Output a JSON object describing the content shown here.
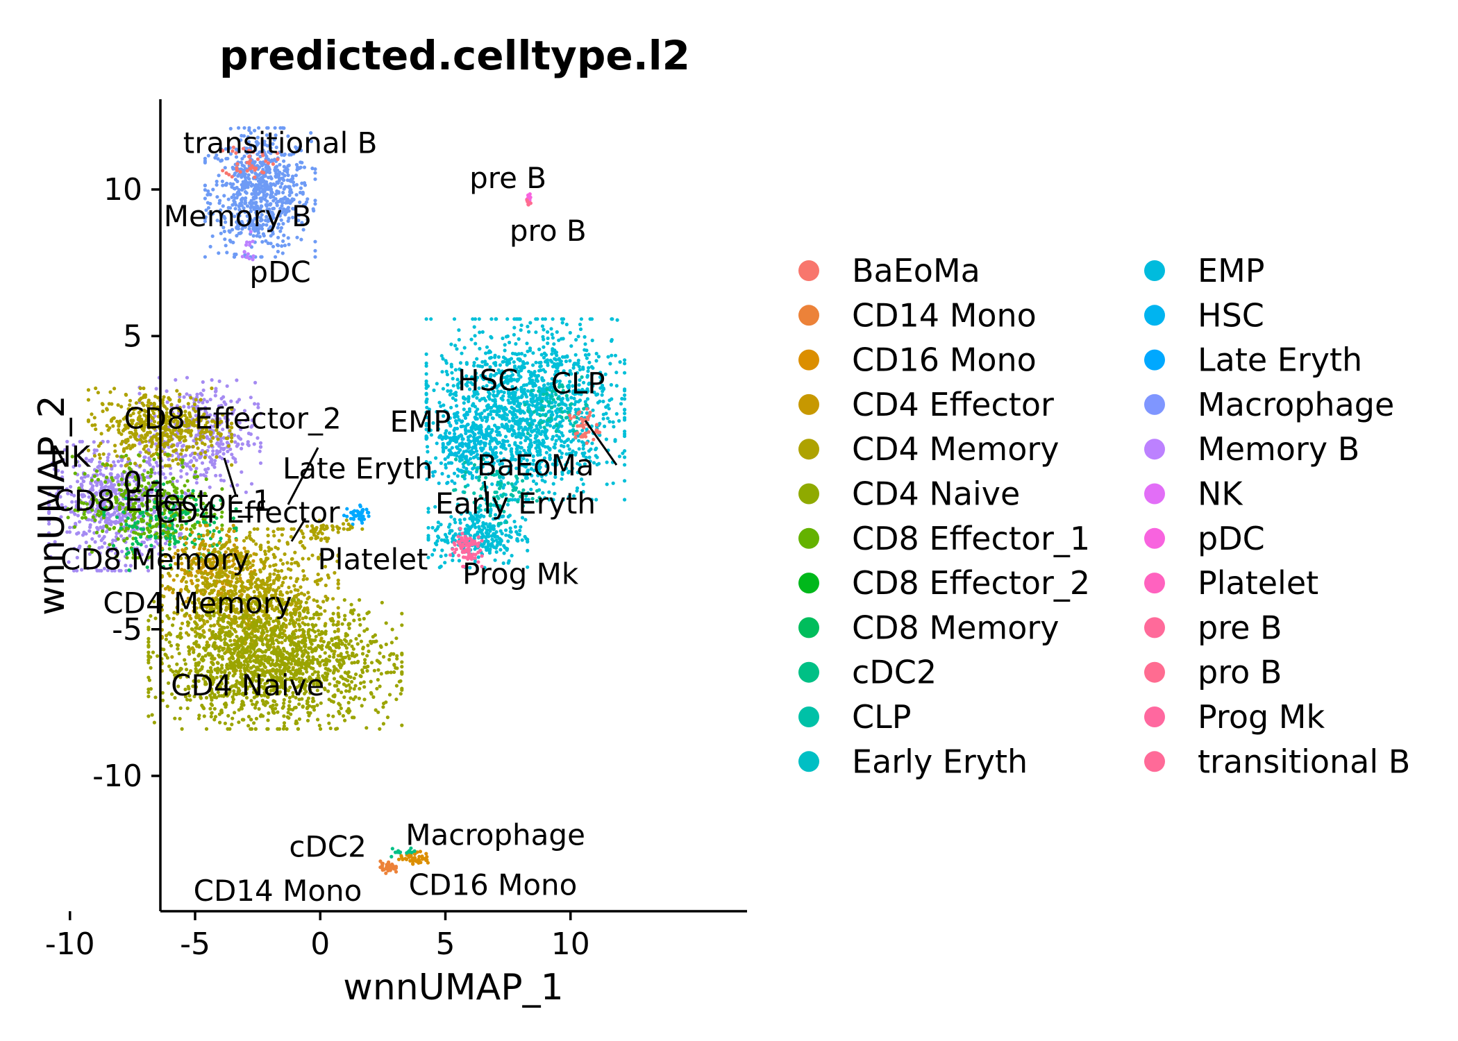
{
  "chart_data": {
    "type": "scatter",
    "title": "predicted.celltype.l2",
    "xlabel": "wnnUMAP_1",
    "ylabel": "wnnUMAP_2",
    "xlim": [
      -11.5,
      12
    ],
    "ylim": [
      -14.2,
      13
    ],
    "xticks": [
      {
        "value": -10,
        "label": "-10"
      },
      {
        "value": -5,
        "label": "-5"
      },
      {
        "value": 0,
        "label": "0"
      },
      {
        "value": 5,
        "label": "5"
      },
      {
        "value": 10,
        "label": "10"
      }
    ],
    "yticks": [
      {
        "value": 10,
        "label": "10"
      },
      {
        "value": 5,
        "label": "5"
      },
      {
        "value": 0,
        "label": "0"
      },
      {
        "value": -5,
        "label": "-5"
      },
      {
        "value": -10,
        "label": "-10"
      }
    ],
    "grid": false,
    "legend": "right",
    "legend_entries": [
      {
        "name": "BaEoMa",
        "color": "#F8766D"
      },
      {
        "name": "CD14 Mono",
        "color": "#EC8239"
      },
      {
        "name": "CD16 Mono",
        "color": "#DB8E00"
      },
      {
        "name": "CD4 Effector",
        "color": "#C79800"
      },
      {
        "name": "CD4 Memory",
        "color": "#AEA200"
      },
      {
        "name": "CD4 Naive",
        "color": "#8FAA00"
      },
      {
        "name": "CD8 Effector_1",
        "color": "#64B200"
      },
      {
        "name": "CD8 Effector_2",
        "color": "#00B81B"
      },
      {
        "name": "CD8 Memory",
        "color": "#00BD5C"
      },
      {
        "name": "cDC2",
        "color": "#00C085"
      },
      {
        "name": "CLP",
        "color": "#00C1A7"
      },
      {
        "name": "Early Eryth",
        "color": "#00BFC4"
      },
      {
        "name": "EMP",
        "color": "#00BBDD"
      },
      {
        "name": "HSC",
        "color": "#00B4F0"
      },
      {
        "name": "Late Eryth",
        "color": "#00A8FF"
      },
      {
        "name": "Macrophage",
        "color": "#7F96FF"
      },
      {
        "name": "Memory B",
        "color": "#BC81FF"
      },
      {
        "name": "NK",
        "color": "#E26EF7"
      },
      {
        "name": "pDC",
        "color": "#F863DF"
      },
      {
        "name": "Platelet",
        "color": "#FF62BF"
      },
      {
        "name": "pre B",
        "color": "#FF6A9A"
      },
      {
        "name": "pro B",
        "color": "#FF6C91"
      },
      {
        "name": "Prog Mk",
        "color": "#FF689F"
      },
      {
        "name": "transitional B",
        "color": "#FF6A98"
      }
    ],
    "clusters": [
      {
        "name": "Memory B",
        "color": "#6E9BF5",
        "cx": -2.4,
        "cy": 9.9,
        "sx": 1.0,
        "sy": 1.0,
        "n": 700
      },
      {
        "name": "transitional B",
        "color": "#F8766D",
        "cx": -2.8,
        "cy": 11.0,
        "sx": 0.5,
        "sy": 0.3,
        "n": 40
      },
      {
        "name": "pDC",
        "color": "#BC81FF",
        "cx": -2.9,
        "cy": 7.9,
        "sx": 0.2,
        "sy": 0.3,
        "n": 15
      },
      {
        "name": "pre B",
        "color": "#F863DF",
        "cx": 8.3,
        "cy": 9.7,
        "sx": 0.05,
        "sy": 0.08,
        "n": 10
      },
      {
        "name": "pro B",
        "color": "#FF6C91",
        "cx": 8.3,
        "cy": 9.5,
        "sx": 0.05,
        "sy": 0.08,
        "n": 8
      },
      {
        "name": "NK",
        "color": "#A58BF2",
        "cx": -8.2,
        "cy": -0.8,
        "sx": 1.2,
        "sy": 1.0,
        "n": 600
      },
      {
        "name": "NK",
        "color": "#A58BF2",
        "cx": -4.8,
        "cy": 1.6,
        "sx": 1.1,
        "sy": 0.9,
        "n": 350
      },
      {
        "name": "CD8 Effector_2",
        "color": "#AEA200",
        "cx": -6.4,
        "cy": 1.9,
        "sx": 1.3,
        "sy": 0.6,
        "n": 450
      },
      {
        "name": "CD8 Effector_1",
        "color": "#64B200",
        "cx": -7.0,
        "cy": -0.8,
        "sx": 1.4,
        "sy": 0.8,
        "n": 350
      },
      {
        "name": "CD8 Memory",
        "color": "#00BD5C",
        "cx": -6.0,
        "cy": -1.5,
        "sx": 1.2,
        "sy": 0.7,
        "n": 150
      },
      {
        "name": "CD4 Effector",
        "color": "#C79800",
        "cx": -4.2,
        "cy": -3.0,
        "sx": 0.9,
        "sy": 0.7,
        "n": 250
      },
      {
        "name": "CD4 Memory",
        "color": "#AEA200",
        "cx": -2.8,
        "cy": -4.0,
        "sx": 1.6,
        "sy": 1.1,
        "n": 900
      },
      {
        "name": "CD4 Naive",
        "color": "#9BA400",
        "cx": -1.8,
        "cy": -6.2,
        "sx": 2.3,
        "sy": 1.0,
        "n": 1500
      },
      {
        "name": "HSC",
        "color": "#00BFD8",
        "cx": 8.2,
        "cy": 2.5,
        "sx": 1.8,
        "sy": 1.4,
        "n": 1400
      },
      {
        "name": "HSC",
        "color": "#00BFD8",
        "cx": 6.3,
        "cy": -1.8,
        "sx": 0.9,
        "sy": 0.5,
        "n": 300
      },
      {
        "name": "EMP",
        "color": "#00BBDD",
        "cx": 5.8,
        "cy": 1.3,
        "sx": 0.7,
        "sy": 0.6,
        "n": 200
      },
      {
        "name": "CLP",
        "color": "#00C1A7",
        "cx": 9.5,
        "cy": 2.5,
        "sx": 0.6,
        "sy": 0.5,
        "n": 60
      },
      {
        "name": "BaEoMa",
        "color": "#F8766D",
        "cx": 10.5,
        "cy": 1.9,
        "sx": 0.3,
        "sy": 0.3,
        "n": 40
      },
      {
        "name": "Early Eryth",
        "color": "#00C1A7",
        "cx": 7.0,
        "cy": -0.3,
        "sx": 0.8,
        "sy": 0.5,
        "n": 80
      },
      {
        "name": "Prog Mk",
        "color": "#FF689F",
        "cx": 5.8,
        "cy": -2.2,
        "sx": 0.3,
        "sy": 0.3,
        "n": 80
      },
      {
        "name": "Late Eryth",
        "color": "#00A8FF",
        "cx": 1.5,
        "cy": -1.1,
        "sx": 0.25,
        "sy": 0.15,
        "n": 40
      },
      {
        "name": "Platelet",
        "color": "#AEA200",
        "cx": -0.2,
        "cy": -1.75,
        "sx": 0.3,
        "sy": 0.15,
        "n": 30
      },
      {
        "name": "Platelet",
        "color": "#AEA200",
        "cx": 0.8,
        "cy": -1.5,
        "sx": 0.4,
        "sy": 0.1,
        "n": 20
      },
      {
        "name": "CD14 Mono",
        "color": "#EC8239",
        "cx": 2.7,
        "cy": -13.1,
        "sx": 0.15,
        "sy": 0.1,
        "n": 40
      },
      {
        "name": "CD16 Mono",
        "color": "#DB8E00",
        "cx": 3.8,
        "cy": -12.8,
        "sx": 0.3,
        "sy": 0.1,
        "n": 50
      },
      {
        "name": "cDC2",
        "color": "#00C085",
        "cx": 3.3,
        "cy": -12.6,
        "sx": 0.3,
        "sy": 0.08,
        "n": 15
      }
    ],
    "annotations": [
      {
        "text": "transitional B",
        "x": -1.6,
        "y": 11.6
      },
      {
        "text": "Memory B",
        "x": -3.3,
        "y": 9.1
      },
      {
        "text": "pDC",
        "x": -1.6,
        "y": 7.2
      },
      {
        "text": "pre B",
        "x": 7.5,
        "y": 10.4
      },
      {
        "text": "pro B",
        "x": 9.1,
        "y": 8.6
      },
      {
        "text": "HSC",
        "x": 6.7,
        "y": 3.5
      },
      {
        "text": "CLP",
        "x": 10.3,
        "y": 3.4
      },
      {
        "text": "EMP",
        "x": 4.0,
        "y": 2.1
      },
      {
        "text": "BaEoMa",
        "x": 8.6,
        "y": 0.6
      },
      {
        "text": "Late Eryth",
        "x": 1.5,
        "y": 0.5
      },
      {
        "text": "Early Eryth",
        "x": 7.8,
        "y": -0.7
      },
      {
        "text": "Platelet",
        "x": 2.1,
        "y": -2.6
      },
      {
        "text": "Prog Mk",
        "x": 8.0,
        "y": -3.1
      },
      {
        "text": "CD8 Effector_2",
        "x": -3.5,
        "y": 2.2
      },
      {
        "text": "NK",
        "x": -10.0,
        "y": 0.9
      },
      {
        "text": "CD8 Effector_1",
        "x": -6.3,
        "y": -0.6
      },
      {
        "text": "CD4 Effector",
        "x": -2.9,
        "y": -1.0
      },
      {
        "text": "CD8 Memory",
        "x": -6.6,
        "y": -2.6
      },
      {
        "text": "CD4 Memory",
        "x": -4.9,
        "y": -4.1
      },
      {
        "text": "CD4 Naive",
        "x": -2.9,
        "y": -6.9
      },
      {
        "text": "Macrophage",
        "x": 7.0,
        "y": -12.0
      },
      {
        "text": "cDC2",
        "x": 0.3,
        "y": -12.4
      },
      {
        "text": "CD14 Mono",
        "x": -1.7,
        "y": -13.9
      },
      {
        "text": "CD16 Mono",
        "x": 6.9,
        "y": -13.7
      }
    ]
  }
}
